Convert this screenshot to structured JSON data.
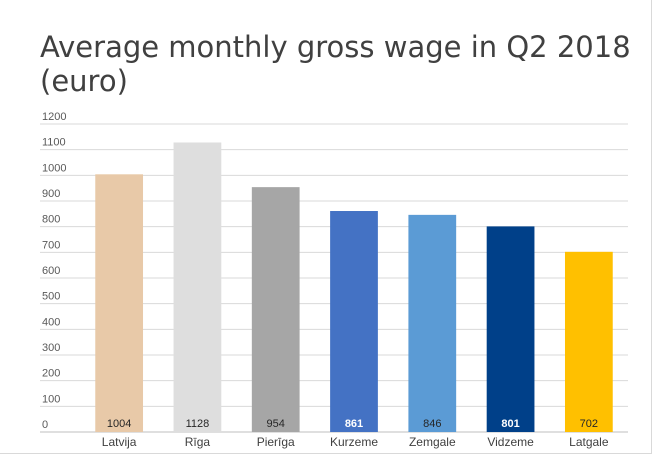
{
  "chart_data": {
    "type": "bar",
    "title": "Average monthly gross wage in Q2 2018 (euro)",
    "categories": [
      "Latvija",
      "Rīga",
      "Pierīga",
      "Kurzeme",
      "Zemgale",
      "Vidzeme",
      "Latgale"
    ],
    "values": [
      1004,
      1128,
      954,
      861,
      846,
      801,
      702
    ],
    "colors": [
      "#E8C9A8",
      "#DEDEDE",
      "#A6A6A6",
      "#4472C4",
      "#5B9BD5",
      "#004089",
      "#FFC000"
    ],
    "value_label_colors": [
      "#262626",
      "#262626",
      "#262626",
      "#ffffff",
      "#262626",
      "#ffffff",
      "#262626"
    ],
    "value_label_bold": [
      false,
      false,
      false,
      true,
      false,
      true,
      false
    ],
    "ylim": [
      0,
      1200
    ],
    "ytick_step": 100,
    "grid": true,
    "xlabel": "",
    "ylabel": ""
  }
}
